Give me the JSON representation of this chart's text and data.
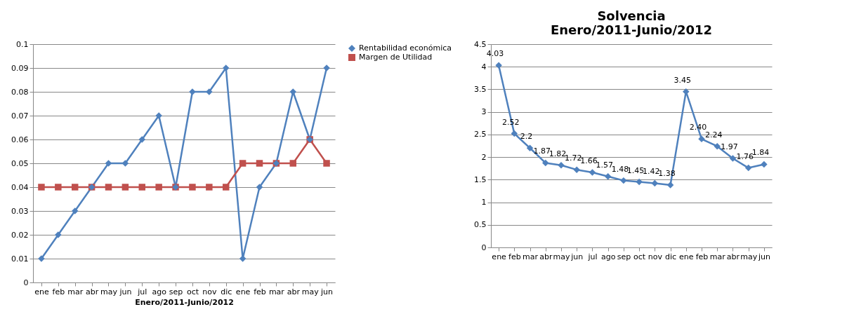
{
  "chart_data": [
    {
      "type": "line",
      "xlabel": "Enero/2011-Junio/2012",
      "categories": [
        "ene",
        "feb",
        "mar",
        "abr",
        "may",
        "jun",
        "jul",
        "ago",
        "sep",
        "oct",
        "nov",
        "dic",
        "ene",
        "feb",
        "mar",
        "abr",
        "may",
        "jun"
      ],
      "series": [
        {
          "name": "Rentabilidad económica",
          "color": "#4f81bd",
          "marker": "diamond",
          "values": [
            0.01,
            0.02,
            0.03,
            0.04,
            0.05,
            0.05,
            0.06,
            0.07,
            0.04,
            0.08,
            0.08,
            0.09,
            0.01,
            0.04,
            0.05,
            0.08,
            0.06,
            0.09
          ]
        },
        {
          "name": "Margen de Utilidad",
          "color": "#c0504d",
          "marker": "square",
          "values": [
            0.04,
            0.04,
            0.04,
            0.04,
            0.04,
            0.04,
            0.04,
            0.04,
            0.04,
            0.04,
            0.04,
            0.04,
            0.05,
            0.05,
            0.05,
            0.05,
            0.06,
            0.05
          ]
        }
      ],
      "ylim": [
        0,
        0.1
      ],
      "yticks": [
        0,
        0.01,
        0.02,
        0.03,
        0.04,
        0.05,
        0.06,
        0.07,
        0.08,
        0.09,
        0.1
      ],
      "grid": "y",
      "legend": "right"
    },
    {
      "type": "line",
      "title": "Solvencia\nEnero/2011-Junio/2012",
      "categories": [
        "ene",
        "feb",
        "mar",
        "abr",
        "may",
        "jun",
        "jul",
        "ago",
        "sep",
        "oct",
        "nov",
        "dic",
        "ene",
        "feb",
        "mar",
        "abr",
        "may",
        "jun"
      ],
      "series": [
        {
          "color": "#4f81bd",
          "marker": "diamond",
          "values": [
            4.03,
            2.52,
            2.2,
            1.87,
            1.82,
            1.72,
            1.66,
            1.57,
            1.48,
            1.45,
            1.42,
            1.38,
            3.45,
            2.4,
            2.24,
            1.97,
            1.76,
            1.84
          ],
          "value_labels": [
            "4.03",
            "2.52",
            "2.2",
            "1.87",
            "1.82",
            "1.72",
            "1.66",
            "1.57",
            "1.48",
            "1.45",
            "1.42",
            "1.38",
            "3.45",
            "2.40",
            "2.24",
            "1.97",
            "1.76",
            "1.84"
          ]
        }
      ],
      "ylim": [
        0,
        4.5
      ],
      "yticks": [
        0,
        0.5,
        1,
        1.5,
        2,
        2.5,
        3,
        3.5,
        4,
        4.5
      ],
      "grid": "y",
      "legend": false
    }
  ]
}
